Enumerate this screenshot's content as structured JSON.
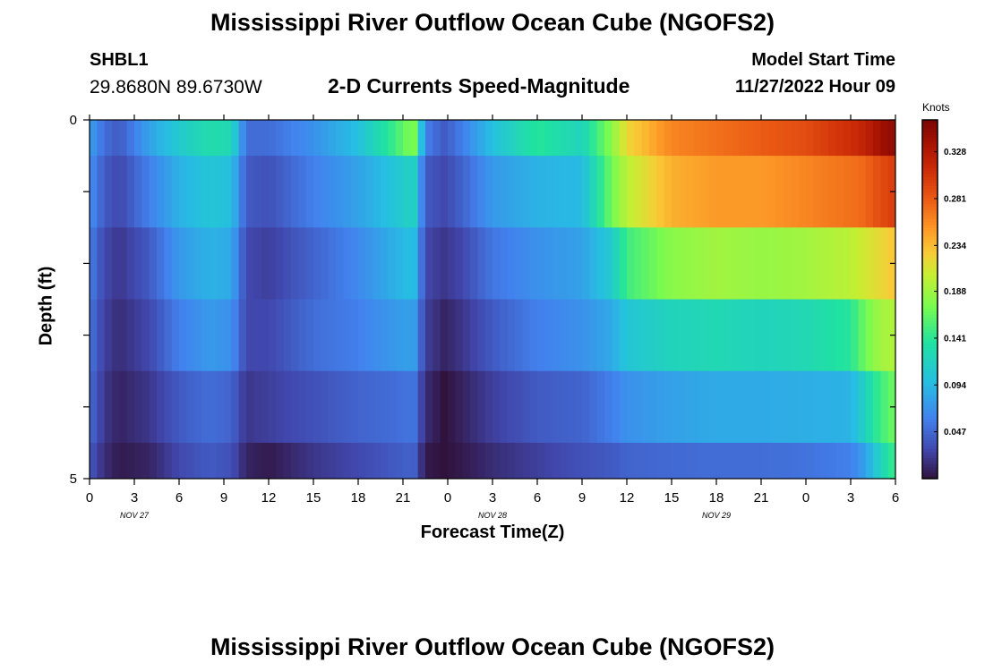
{
  "header": {
    "title": "Mississippi River Outflow Ocean Cube (NGOFS2)",
    "station": "SHBL1",
    "coordinates": "29.8680N  89.6730W",
    "subtitle": "2-D Currents Speed-Magnitude",
    "model_start_label": "Model Start Time",
    "model_start_value": "11/27/2022 Hour 09"
  },
  "footer": {
    "repeated_title": "Mississippi River Outflow Ocean Cube (NGOFS2)"
  },
  "chart_data": {
    "type": "heatmap",
    "xlabel": "Forecast Time(Z)",
    "ylabel": "Depth (ft)",
    "x_hours": [
      0,
      6,
      12,
      18,
      24,
      30,
      36,
      42,
      48,
      54
    ],
    "x_tick_labels": [
      "0",
      "3",
      "6",
      "9",
      "12",
      "15",
      "18",
      "21",
      "0",
      "3",
      "6",
      "9",
      "12",
      "15",
      "18",
      "21",
      "0",
      "3",
      "6"
    ],
    "date_labels": [
      {
        "label": "NOV 27",
        "hour": 3
      },
      {
        "label": "NOV 28",
        "hour": 27
      },
      {
        "label": "NOV 29",
        "hour": 42
      }
    ],
    "y_tick_labels": [
      "0",
      "5"
    ],
    "ylim": [
      0,
      5
    ],
    "colorbar": {
      "unit": "Knots",
      "min": 0.0,
      "max": 0.36,
      "tick_values": [
        0.047,
        0.094,
        0.141,
        0.188,
        0.234,
        0.281,
        0.328
      ],
      "tick_labels": [
        "0.047",
        "0.094",
        "0.141",
        "0.188",
        "0.234",
        "0.281",
        "0.328"
      ]
    },
    "depth_rows": [
      "0.0-0.5",
      "0.5-1.5",
      "1.5-2.5",
      "2.5-3.5",
      "3.5-4.5",
      "4.5-5.0"
    ],
    "keyframes": [
      {
        "hour": 0.0,
        "values": [
          0.08,
          0.07,
          0.06,
          0.055,
          0.05,
          0.04
        ]
      },
      {
        "hour": 1.0,
        "values": [
          0.05,
          0.04,
          0.03,
          0.025,
          0.02,
          0.015
        ]
      },
      {
        "hour": 2.0,
        "values": [
          0.04,
          0.03,
          0.02,
          0.015,
          0.01,
          0.005
        ]
      },
      {
        "hour": 4.0,
        "values": [
          0.08,
          0.06,
          0.04,
          0.03,
          0.02,
          0.01
        ]
      },
      {
        "hour": 6.0,
        "values": [
          0.11,
          0.09,
          0.075,
          0.06,
          0.04,
          0.03
        ]
      },
      {
        "hour": 8.0,
        "values": [
          0.13,
          0.105,
          0.09,
          0.075,
          0.05,
          0.04
        ]
      },
      {
        "hour": 9.5,
        "values": [
          0.125,
          0.1,
          0.085,
          0.07,
          0.045,
          0.035
        ]
      },
      {
        "hour": 10.5,
        "values": [
          0.05,
          0.04,
          0.03,
          0.03,
          0.02,
          0.01
        ]
      },
      {
        "hour": 12.0,
        "values": [
          0.05,
          0.035,
          0.025,
          0.03,
          0.025,
          0.005
        ]
      },
      {
        "hour": 15.0,
        "values": [
          0.07,
          0.06,
          0.045,
          0.05,
          0.035,
          0.02
        ]
      },
      {
        "hour": 18.0,
        "values": [
          0.1,
          0.08,
          0.065,
          0.06,
          0.045,
          0.03
        ]
      },
      {
        "hour": 20.5,
        "values": [
          0.15,
          0.105,
          0.09,
          0.075,
          0.05,
          0.04
        ]
      },
      {
        "hour": 21.7,
        "values": [
          0.18,
          0.12,
          0.1,
          0.08,
          0.055,
          0.045
        ]
      },
      {
        "hour": 22.5,
        "values": [
          0.06,
          0.04,
          0.03,
          0.025,
          0.015,
          0.005
        ]
      },
      {
        "hour": 23.8,
        "values": [
          0.04,
          0.03,
          0.02,
          0.01,
          0.0,
          0.0
        ]
      },
      {
        "hour": 25.0,
        "values": [
          0.06,
          0.045,
          0.03,
          0.02,
          0.01,
          0.005
        ]
      },
      {
        "hour": 27.0,
        "values": [
          0.1,
          0.075,
          0.055,
          0.04,
          0.025,
          0.015
        ]
      },
      {
        "hour": 30.0,
        "values": [
          0.14,
          0.09,
          0.07,
          0.06,
          0.04,
          0.025
        ]
      },
      {
        "hour": 33.0,
        "values": [
          0.12,
          0.095,
          0.08,
          0.07,
          0.045,
          0.035
        ]
      },
      {
        "hour": 35.0,
        "values": [
          0.18,
          0.17,
          0.11,
          0.085,
          0.06,
          0.04
        ]
      },
      {
        "hour": 36.0,
        "values": [
          0.22,
          0.2,
          0.15,
          0.105,
          0.07,
          0.045
        ]
      },
      {
        "hour": 39.0,
        "values": [
          0.26,
          0.24,
          0.18,
          0.12,
          0.08,
          0.048
        ]
      },
      {
        "hour": 42.0,
        "values": [
          0.27,
          0.25,
          0.19,
          0.125,
          0.085,
          0.05
        ]
      },
      {
        "hour": 45.0,
        "values": [
          0.28,
          0.25,
          0.185,
          0.12,
          0.085,
          0.05
        ]
      },
      {
        "hour": 48.0,
        "values": [
          0.29,
          0.26,
          0.19,
          0.125,
          0.088,
          0.053
        ]
      },
      {
        "hour": 51.0,
        "values": [
          0.31,
          0.27,
          0.2,
          0.14,
          0.09,
          0.06
        ]
      },
      {
        "hour": 52.0,
        "values": [
          0.32,
          0.275,
          0.21,
          0.17,
          0.12,
          0.08
        ]
      },
      {
        "hour": 53.0,
        "values": [
          0.34,
          0.29,
          0.22,
          0.19,
          0.15,
          0.12
        ]
      },
      {
        "hour": 54.0,
        "values": [
          0.35,
          0.3,
          0.23,
          0.195,
          0.17,
          0.15
        ]
      }
    ]
  }
}
